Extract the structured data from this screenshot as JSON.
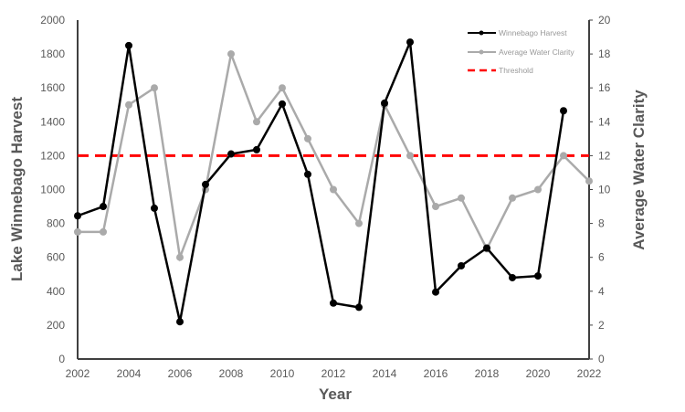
{
  "chart_data": {
    "type": "line",
    "title": "",
    "xlabel": "Year",
    "ylabel": "Lake Winnebago Harvest",
    "y2label": "Average Water Clarity",
    "xlim": [
      2002,
      2022
    ],
    "ylim": [
      0,
      2000
    ],
    "y2lim": [
      0,
      20
    ],
    "xticks": [
      2002,
      2004,
      2006,
      2008,
      2010,
      2012,
      2014,
      2016,
      2018,
      2020,
      2022
    ],
    "yticks": [
      0,
      200,
      400,
      600,
      800,
      1000,
      1200,
      1400,
      1600,
      1800,
      2000
    ],
    "y2ticks": [
      0,
      2,
      4,
      6,
      8,
      10,
      12,
      14,
      16,
      18,
      20
    ],
    "grid": false,
    "legend_position": "top-right",
    "series": [
      {
        "name": "Winnebago Harvest",
        "axis": "left",
        "color": "#000000",
        "x": [
          2002,
          2003,
          2004,
          2005,
          2006,
          2007,
          2008,
          2009,
          2010,
          2011,
          2012,
          2013,
          2014,
          2015,
          2016,
          2017,
          2018,
          2019,
          2020,
          2021
        ],
        "values": [
          845,
          900,
          1850,
          890,
          220,
          1030,
          1210,
          1235,
          1505,
          1090,
          330,
          305,
          1510,
          1870,
          395,
          550,
          655,
          480,
          490,
          1465
        ]
      },
      {
        "name": "Average Water Clarity",
        "axis": "right",
        "color": "#aaaaaa",
        "x": [
          2002,
          2003,
          2004,
          2005,
          2006,
          2007,
          2008,
          2009,
          2010,
          2011,
          2012,
          2013,
          2014,
          2015,
          2016,
          2017,
          2018,
          2019,
          2020,
          2021,
          2022
        ],
        "values": [
          7.5,
          7.5,
          15,
          16,
          6,
          10,
          18,
          14,
          16,
          13,
          10,
          8,
          15,
          12,
          9,
          9.5,
          6.5,
          9.5,
          10,
          12,
          10.5
        ]
      },
      {
        "name": "Threshold",
        "axis": "left",
        "color": "#ff0000",
        "style": "dashed",
        "value": 1200
      }
    ]
  }
}
